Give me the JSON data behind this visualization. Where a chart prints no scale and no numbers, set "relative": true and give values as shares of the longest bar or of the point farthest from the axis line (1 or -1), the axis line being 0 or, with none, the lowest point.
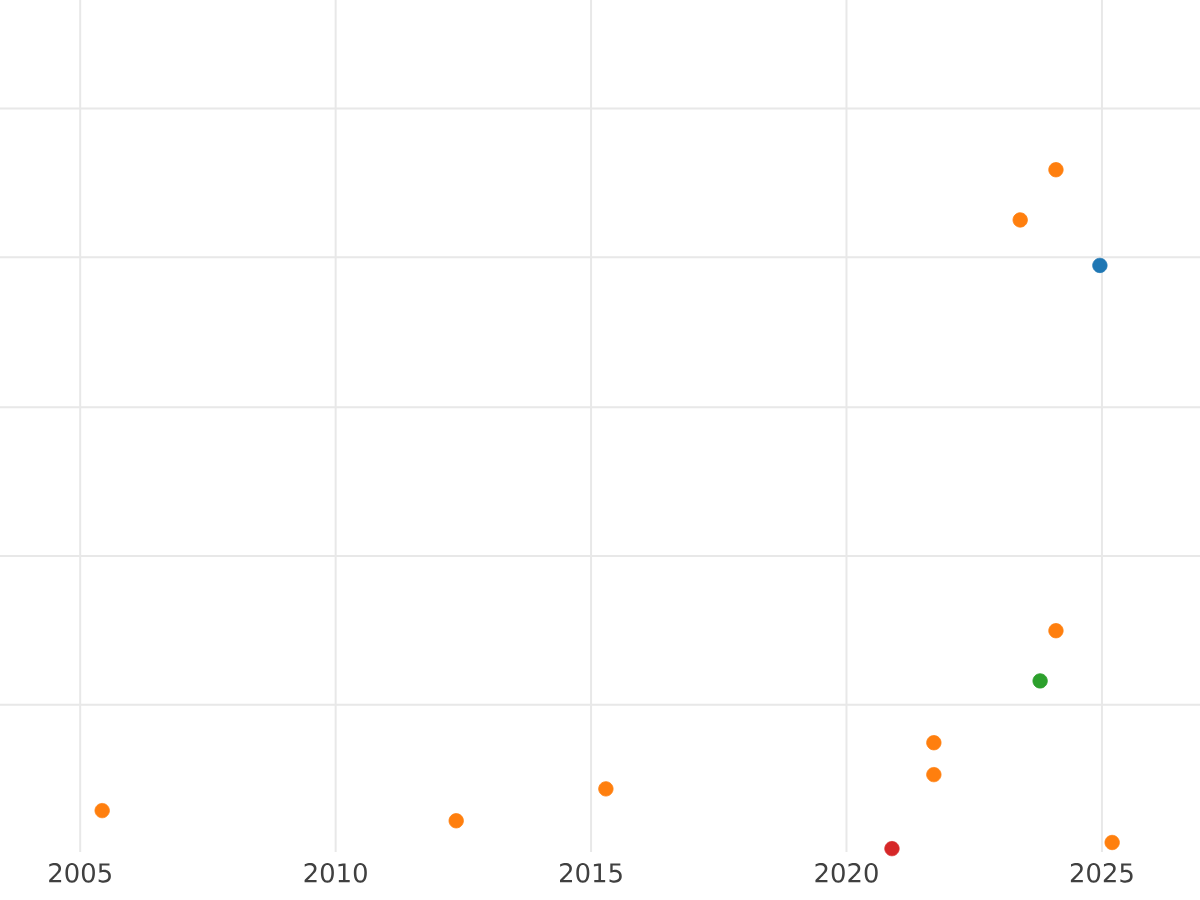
{
  "chart_data": {
    "type": "scatter",
    "relative": true,
    "marker": "circle",
    "grid": true,
    "tick_labels": "x",
    "xlim": [
      2003.43,
      2026.92
    ],
    "xticks": [
      2005,
      2010,
      2015,
      2020,
      2025
    ],
    "series": [
      {
        "color": "#ff7f0e",
        "x": [
          2005.43,
          2012.36,
          2015.29,
          2021.71,
          2021.71,
          2024.1,
          2023.4,
          2024.1,
          2025.2
        ],
        "values": [
          0.056,
          0.041,
          0.088,
          0.109,
          0.156,
          0.321,
          0.926,
          1,
          0.009
        ]
      },
      {
        "color": "#1f77b4",
        "x": [
          2024.96
        ],
        "values": [
          0.859
        ]
      },
      {
        "color": "#2ca02c",
        "x": [
          2023.79
        ],
        "values": [
          0.247
        ]
      },
      {
        "color": "#d62728",
        "x": [
          2020.89
        ],
        "values": [
          0
        ]
      }
    ]
  }
}
